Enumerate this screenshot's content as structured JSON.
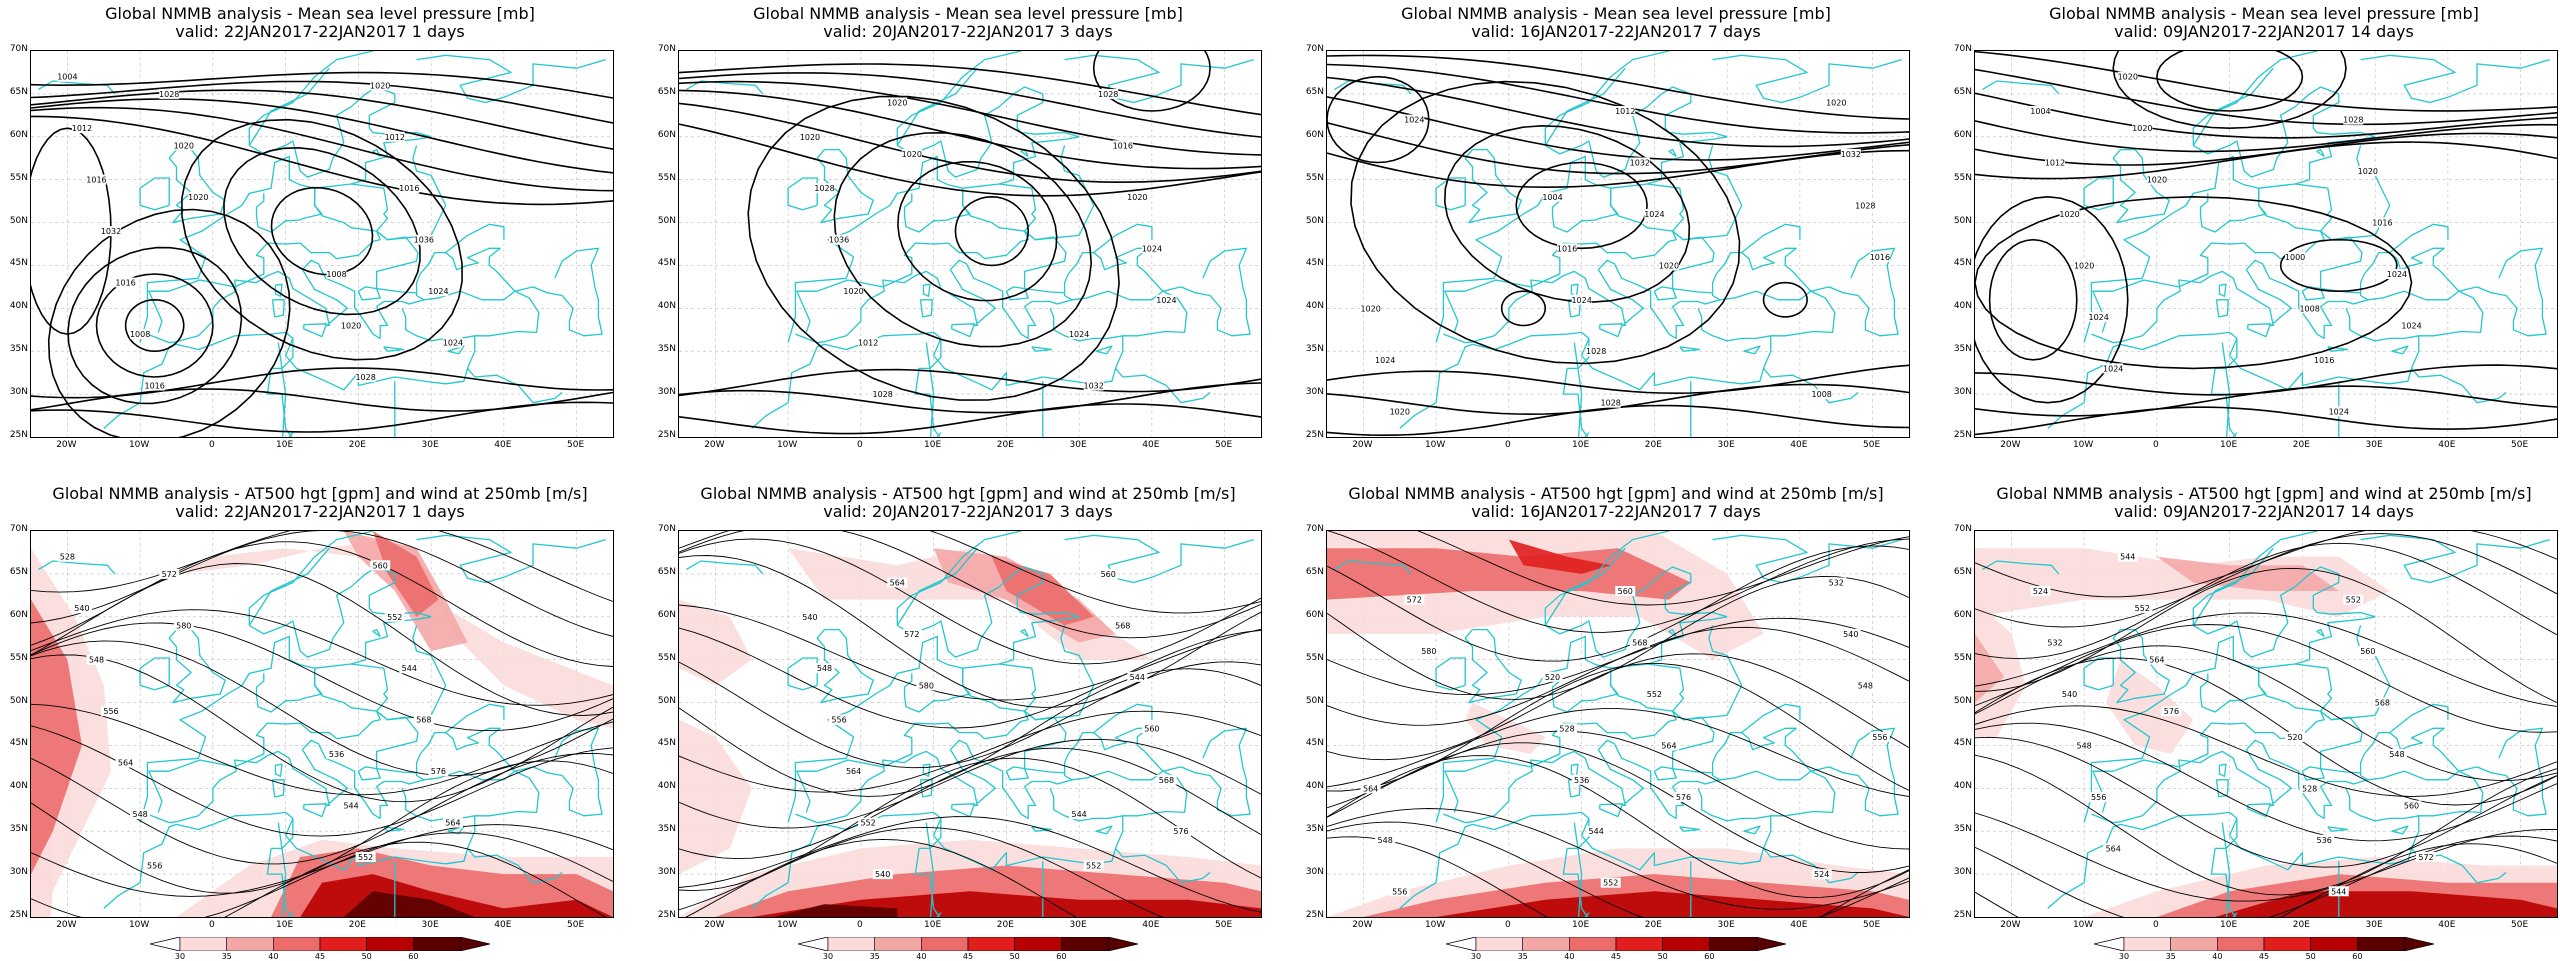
{
  "colors": {
    "coast": "#22c7cf",
    "contour": "#000000",
    "grid": "#bbbbbb",
    "wind_levels": [
      "#fbdada",
      "#f4a7a7",
      "#ec6c6c",
      "#e01e1e",
      "#b80000",
      "#5a0000"
    ]
  },
  "axes": {
    "lat_labels": [
      "70N",
      "65N",
      "60N",
      "55N",
      "50N",
      "45N",
      "40N",
      "35N",
      "30N",
      "25N"
    ],
    "lon_labels": [
      "20W",
      "10W",
      "0",
      "10E",
      "20E",
      "30E",
      "40E",
      "50E"
    ]
  },
  "colorbar": {
    "ticks": [
      "30",
      "35",
      "40",
      "45",
      "50",
      "60"
    ]
  },
  "panels_top": [
    {
      "title_line1": "Global NMMB analysis - Mean sea level pressure [mb]",
      "title_line2": "valid: 22JAN2017-22JAN2017   1 days",
      "labels": [
        "1004",
        "1008",
        "1012",
        "1020",
        "1016",
        "1028",
        "1032",
        "1020",
        "1016",
        "1012",
        "1008",
        "1016",
        "1016",
        "1036",
        "1028",
        "1024",
        "1020",
        "1024",
        "1020"
      ]
    },
    {
      "title_line1": "Global NMMB analysis - Mean sea level pressure [mb]",
      "title_line2": "valid: 20JAN2017-22JAN2017   3 days",
      "labels": [
        "1020",
        "1024",
        "1028",
        "1032",
        "1036",
        "1028",
        "1020",
        "1016",
        "1012",
        "1020",
        "1028",
        "1024",
        "1020",
        "1024",
        "1020"
      ]
    },
    {
      "title_line1": "Global NMMB analysis - Mean sea level pressure [mb]",
      "title_line2": "valid: 16JAN2017-22JAN2017   7 days",
      "labels": [
        "1004",
        "1008",
        "1016",
        "1020",
        "1024",
        "1032",
        "1028",
        "1028",
        "1028",
        "1016",
        "1012",
        "1020",
        "1032",
        "1024",
        "1024",
        "1020",
        "1020",
        "1024"
      ]
    },
    {
      "title_line1": "Global NMMB analysis - Mean sea level pressure [mb]",
      "title_line2": "valid: 09JAN2017-22JAN2017   14 days",
      "labels": [
        "1000",
        "1004",
        "1008",
        "1012",
        "1016",
        "1020",
        "1024",
        "1020",
        "1028",
        "1024",
        "1020",
        "1024",
        "1016",
        "1020",
        "1024",
        "1020",
        "1024",
        "1020"
      ]
    }
  ],
  "panels_bottom": [
    {
      "title_line1": "Global NMMB analysis - AT500 hgt [gpm] and wind at 250mb [m/s]",
      "title_line2": "valid: 22JAN2017-22JAN2017   1 days",
      "labels": [
        "528",
        "536",
        "540",
        "544",
        "548",
        "552",
        "556",
        "560",
        "564",
        "552",
        "548",
        "544",
        "556",
        "568",
        "572",
        "576",
        "580",
        "564"
      ]
    },
    {
      "title_line1": "Global NMMB analysis - AT500 hgt [gpm] and wind at 250mb [m/s]",
      "title_line2": "valid: 20JAN2017-22JAN2017   3 days",
      "labels": [
        "540",
        "544",
        "548",
        "552",
        "556",
        "560",
        "564",
        "568",
        "552",
        "544",
        "540",
        "560",
        "564",
        "568",
        "572",
        "576",
        "580"
      ]
    },
    {
      "title_line1": "Global NMMB analysis - AT500 hgt [gpm] and wind at 250mb [m/s]",
      "title_line2": "valid: 16JAN2017-22JAN2017   7 days",
      "labels": [
        "520",
        "524",
        "528",
        "532",
        "536",
        "540",
        "544",
        "548",
        "552",
        "556",
        "560",
        "564",
        "568",
        "548",
        "552",
        "556",
        "564",
        "572",
        "576",
        "580"
      ]
    },
    {
      "title_line1": "Global NMMB analysis - AT500 hgt [gpm] and wind at 250mb [m/s]",
      "title_line2": "valid: 09JAN2017-22JAN2017   14 days",
      "labels": [
        "520",
        "524",
        "528",
        "532",
        "536",
        "540",
        "544",
        "548",
        "552",
        "556",
        "560",
        "564",
        "568",
        "544",
        "548",
        "552",
        "560",
        "564",
        "572",
        "576"
      ]
    }
  ]
}
